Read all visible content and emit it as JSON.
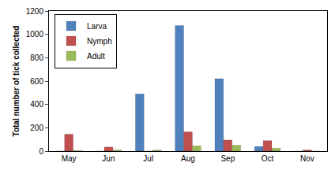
{
  "chart_data": {
    "type": "bar",
    "y_label": "Total number of tick collected",
    "categories": [
      "May",
      "Jun",
      "Jul",
      "Aug",
      "Sep",
      "Oct",
      "Nov"
    ],
    "series": [
      {
        "name": "Larva",
        "color": "#4F81BD",
        "values": [
          0,
          0,
          490,
          1075,
          620,
          40,
          0
        ]
      },
      {
        "name": "Nymph",
        "color": "#C0504D",
        "values": [
          145,
          35,
          0,
          165,
          95,
          90,
          10
        ]
      },
      {
        "name": "Adult",
        "color": "#9BBB59",
        "values": [
          5,
          10,
          10,
          45,
          50,
          25,
          0
        ]
      }
    ],
    "ylim": [
      0,
      1200
    ],
    "yticks": [
      0,
      200,
      400,
      600,
      800,
      1000,
      1200
    ],
    "grid": false,
    "legend": "upper left"
  }
}
